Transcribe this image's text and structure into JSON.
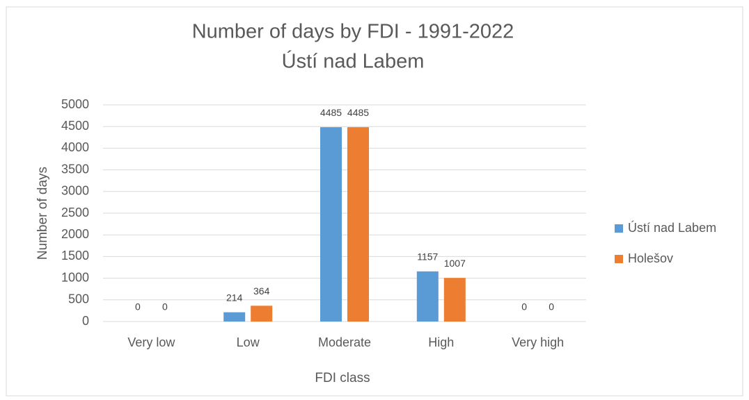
{
  "chart_data": {
    "type": "bar",
    "title": "Number of days by FDI - 1991-2022",
    "subtitle": "Ústí nad Labem",
    "x_label": "FDI class",
    "y_label": "Number of days",
    "categories": [
      "Very low",
      "Low",
      "Moderate",
      "High",
      "Very high"
    ],
    "series": [
      {
        "name": "Ústí nad Labem",
        "color": "#5b9bd5",
        "values": [
          0,
          214,
          4485,
          1157,
          0
        ]
      },
      {
        "name": "Holešov",
        "color": "#ed7d31",
        "values": [
          0,
          364,
          4485,
          1007,
          0
        ]
      }
    ],
    "ylim": [
      0,
      5000
    ],
    "yticks": [
      0,
      500,
      1000,
      1500,
      2000,
      2500,
      3000,
      3500,
      4000,
      4500,
      5000
    ],
    "grid": true,
    "legend": "right"
  }
}
